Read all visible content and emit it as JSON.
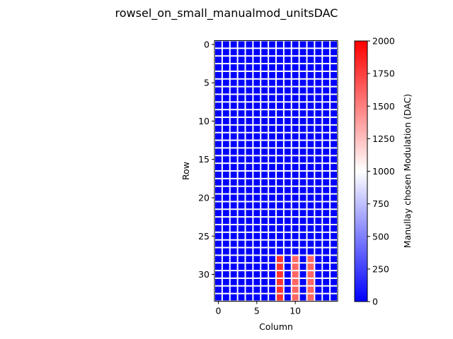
{
  "chart_data": {
    "type": "heatmap",
    "title": "rowsel_on_small_manualmod_unitsDAC",
    "xlabel": "Column",
    "ylabel": "Row",
    "n_rows": 34,
    "n_cols": 16,
    "grid_color": "#ffffff",
    "colormap": "bwr",
    "colormap_stops": [
      "#0000ff",
      "#ffffff",
      "#ff0000"
    ],
    "vmin": 0,
    "vmax": 2000,
    "default_value": 0,
    "x_ticks": [
      0,
      5,
      10
    ],
    "y_ticks": [
      0,
      5,
      10,
      15,
      20,
      25,
      30
    ],
    "colorbar_label": "Manullay chosen Modulation (DAC)",
    "colorbar_ticks": [
      0,
      250,
      500,
      750,
      1000,
      1250,
      1500,
      1750,
      2000
    ],
    "highlighted_cells": [
      {
        "col": 8,
        "rows": [
          28,
          29,
          30,
          31,
          32,
          33
        ],
        "value": 1800
      },
      {
        "col": 10,
        "rows": [
          28,
          29,
          30,
          31,
          32,
          33
        ],
        "value": 1600
      },
      {
        "col": 12,
        "rows": [
          28,
          29,
          30,
          31,
          32,
          33
        ],
        "value": 1600
      }
    ]
  }
}
